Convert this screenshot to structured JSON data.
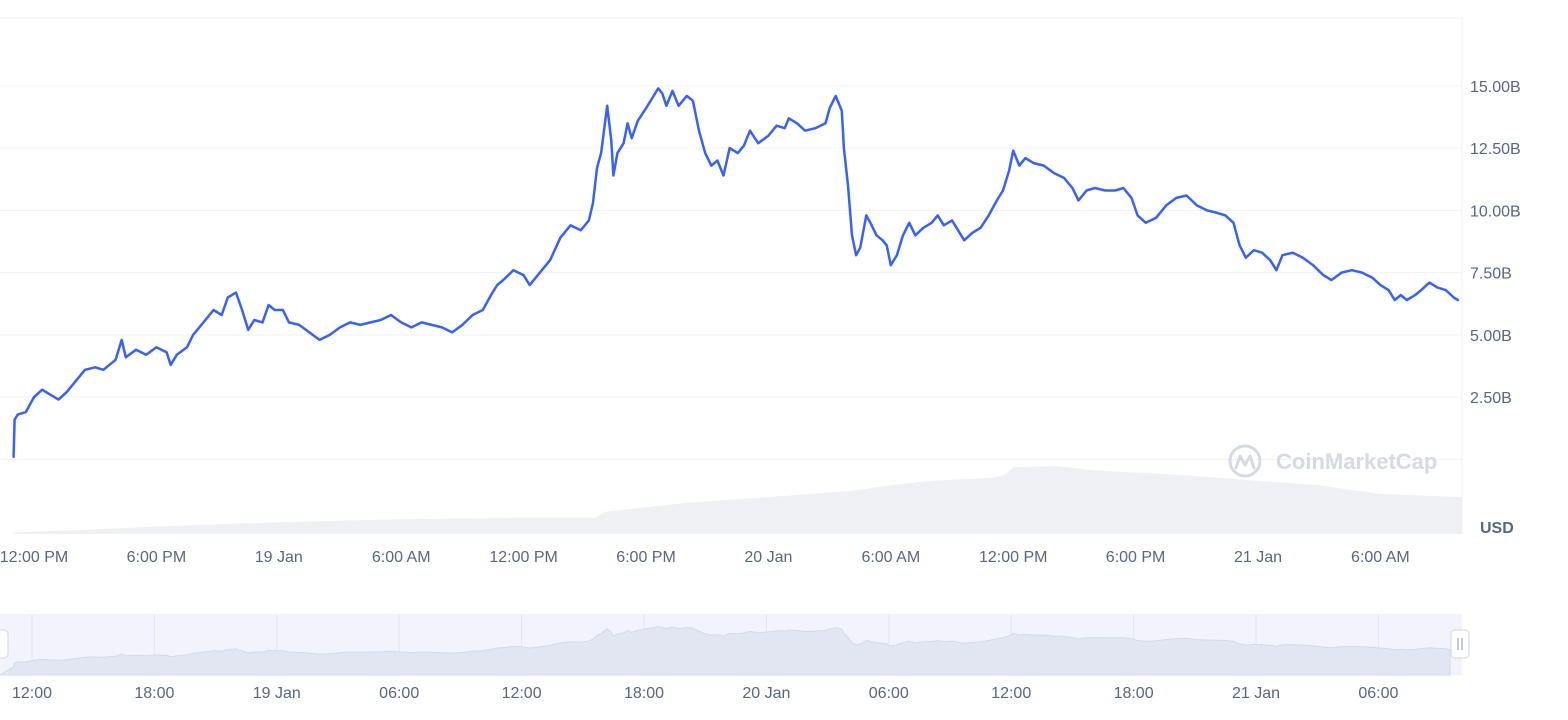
{
  "chart_data": {
    "type": "line",
    "unit": "USD",
    "y_ticks": [
      "2.50B",
      "5.00B",
      "7.50B",
      "10.00B",
      "12.50B",
      "15.00B"
    ],
    "y_tick_values": [
      2.5,
      5.0,
      7.5,
      10.0,
      12.5,
      15.0
    ],
    "ylim": [
      -0.5,
      17.5
    ],
    "grid": true,
    "x_ticks": [
      "12:00 PM",
      "6:00 PM",
      "19 Jan",
      "6:00 AM",
      "12:00 PM",
      "6:00 PM",
      "20 Jan",
      "6:00 AM",
      "12:00 PM",
      "6:00 PM",
      "21 Jan",
      "6:00 AM"
    ],
    "x_tick_hours": [
      12,
      18,
      24,
      30,
      36,
      42,
      48,
      54,
      60,
      66,
      72,
      78
    ],
    "xlim_hours": [
      11,
      82
    ],
    "series": [
      {
        "color": "#3861fb",
        "points": [
          [
            11.0,
            0.1
          ],
          [
            11.05,
            1.6
          ],
          [
            11.2,
            1.8
          ],
          [
            11.6,
            1.9
          ],
          [
            12.0,
            2.5
          ],
          [
            12.4,
            2.8
          ],
          [
            12.8,
            2.6
          ],
          [
            13.2,
            2.4
          ],
          [
            13.6,
            2.7
          ],
          [
            14.0,
            3.1
          ],
          [
            14.5,
            3.6
          ],
          [
            15.0,
            3.7
          ],
          [
            15.4,
            3.6
          ],
          [
            16.0,
            4.0
          ],
          [
            16.3,
            4.8
          ],
          [
            16.5,
            4.1
          ],
          [
            17.0,
            4.4
          ],
          [
            17.5,
            4.2
          ],
          [
            18.0,
            4.5
          ],
          [
            18.5,
            4.3
          ],
          [
            18.7,
            3.8
          ],
          [
            19.0,
            4.2
          ],
          [
            19.5,
            4.5
          ],
          [
            19.8,
            5.0
          ],
          [
            20.4,
            5.6
          ],
          [
            20.8,
            6.0
          ],
          [
            21.2,
            5.8
          ],
          [
            21.5,
            6.5
          ],
          [
            21.9,
            6.7
          ],
          [
            22.2,
            6.0
          ],
          [
            22.5,
            5.2
          ],
          [
            22.8,
            5.6
          ],
          [
            23.2,
            5.5
          ],
          [
            23.5,
            6.2
          ],
          [
            23.8,
            6.0
          ],
          [
            24.2,
            6.0
          ],
          [
            24.5,
            5.5
          ],
          [
            25.0,
            5.4
          ],
          [
            25.5,
            5.1
          ],
          [
            26.0,
            4.8
          ],
          [
            26.5,
            5.0
          ],
          [
            27.0,
            5.3
          ],
          [
            27.5,
            5.5
          ],
          [
            28.0,
            5.4
          ],
          [
            28.5,
            5.5
          ],
          [
            29.0,
            5.6
          ],
          [
            29.5,
            5.8
          ],
          [
            30.0,
            5.5
          ],
          [
            30.5,
            5.3
          ],
          [
            31.0,
            5.5
          ],
          [
            31.5,
            5.4
          ],
          [
            32.0,
            5.3
          ],
          [
            32.5,
            5.1
          ],
          [
            33.0,
            5.4
          ],
          [
            33.5,
            5.8
          ],
          [
            34.0,
            6.0
          ],
          [
            34.4,
            6.6
          ],
          [
            34.7,
            7.0
          ],
          [
            35.0,
            7.2
          ],
          [
            35.5,
            7.6
          ],
          [
            36.0,
            7.4
          ],
          [
            36.3,
            7.0
          ],
          [
            36.8,
            7.5
          ],
          [
            37.3,
            8.0
          ],
          [
            37.8,
            8.9
          ],
          [
            38.3,
            9.4
          ],
          [
            38.8,
            9.2
          ],
          [
            39.2,
            9.6
          ],
          [
            39.4,
            10.3
          ],
          [
            39.6,
            11.7
          ],
          [
            39.8,
            12.3
          ],
          [
            40.1,
            14.2
          ],
          [
            40.3,
            12.8
          ],
          [
            40.4,
            11.4
          ],
          [
            40.6,
            12.3
          ],
          [
            40.9,
            12.7
          ],
          [
            41.1,
            13.5
          ],
          [
            41.3,
            12.9
          ],
          [
            41.6,
            13.6
          ],
          [
            42.0,
            14.1
          ],
          [
            42.3,
            14.5
          ],
          [
            42.6,
            14.9
          ],
          [
            42.8,
            14.7
          ],
          [
            43.0,
            14.2
          ],
          [
            43.3,
            14.8
          ],
          [
            43.6,
            14.2
          ],
          [
            44.0,
            14.6
          ],
          [
            44.3,
            14.4
          ],
          [
            44.6,
            13.2
          ],
          [
            44.9,
            12.3
          ],
          [
            45.2,
            11.8
          ],
          [
            45.5,
            12.0
          ],
          [
            45.8,
            11.4
          ],
          [
            46.1,
            12.5
          ],
          [
            46.5,
            12.3
          ],
          [
            46.8,
            12.6
          ],
          [
            47.1,
            13.2
          ],
          [
            47.5,
            12.7
          ],
          [
            48.0,
            13.0
          ],
          [
            48.4,
            13.4
          ],
          [
            48.8,
            13.3
          ],
          [
            49.0,
            13.7
          ],
          [
            49.4,
            13.5
          ],
          [
            49.8,
            13.2
          ],
          [
            50.3,
            13.3
          ],
          [
            50.8,
            13.5
          ],
          [
            51.0,
            14.1
          ],
          [
            51.3,
            14.6
          ],
          [
            51.6,
            14.0
          ],
          [
            51.7,
            12.5
          ],
          [
            51.9,
            11.0
          ],
          [
            52.1,
            9.0
          ],
          [
            52.3,
            8.2
          ],
          [
            52.5,
            8.5
          ],
          [
            52.8,
            9.8
          ],
          [
            53.0,
            9.5
          ],
          [
            53.3,
            9.0
          ],
          [
            53.6,
            8.8
          ],
          [
            53.8,
            8.6
          ],
          [
            54.0,
            7.8
          ],
          [
            54.3,
            8.2
          ],
          [
            54.6,
            9.0
          ],
          [
            54.9,
            9.5
          ],
          [
            55.2,
            9.0
          ],
          [
            55.6,
            9.3
          ],
          [
            56.0,
            9.5
          ],
          [
            56.3,
            9.8
          ],
          [
            56.6,
            9.4
          ],
          [
            57.0,
            9.6
          ],
          [
            57.3,
            9.2
          ],
          [
            57.6,
            8.8
          ],
          [
            58.0,
            9.1
          ],
          [
            58.4,
            9.3
          ],
          [
            58.8,
            9.8
          ],
          [
            59.2,
            10.4
          ],
          [
            59.5,
            10.8
          ],
          [
            59.8,
            11.6
          ],
          [
            60.0,
            12.4
          ],
          [
            60.3,
            11.8
          ],
          [
            60.6,
            12.1
          ],
          [
            61.0,
            11.9
          ],
          [
            61.5,
            11.8
          ],
          [
            62.0,
            11.5
          ],
          [
            62.5,
            11.3
          ],
          [
            62.9,
            10.9
          ],
          [
            63.2,
            10.4
          ],
          [
            63.6,
            10.8
          ],
          [
            64.0,
            10.9
          ],
          [
            64.5,
            10.8
          ],
          [
            65.0,
            10.8
          ],
          [
            65.4,
            10.9
          ],
          [
            65.8,
            10.5
          ],
          [
            66.1,
            9.8
          ],
          [
            66.5,
            9.5
          ],
          [
            67.0,
            9.7
          ],
          [
            67.5,
            10.2
          ],
          [
            68.0,
            10.5
          ],
          [
            68.5,
            10.6
          ],
          [
            69.0,
            10.2
          ],
          [
            69.5,
            10.0
          ],
          [
            70.0,
            9.9
          ],
          [
            70.4,
            9.8
          ],
          [
            70.8,
            9.5
          ],
          [
            71.1,
            8.6
          ],
          [
            71.4,
            8.1
          ],
          [
            71.8,
            8.4
          ],
          [
            72.2,
            8.3
          ],
          [
            72.6,
            8.0
          ],
          [
            72.9,
            7.6
          ],
          [
            73.2,
            8.2
          ],
          [
            73.7,
            8.3
          ],
          [
            74.2,
            8.1
          ],
          [
            74.7,
            7.8
          ],
          [
            75.2,
            7.4
          ],
          [
            75.6,
            7.2
          ],
          [
            76.1,
            7.5
          ],
          [
            76.6,
            7.6
          ],
          [
            77.1,
            7.5
          ],
          [
            77.6,
            7.3
          ],
          [
            78.0,
            7.0
          ],
          [
            78.4,
            6.8
          ],
          [
            78.7,
            6.4
          ],
          [
            79.0,
            6.6
          ],
          [
            79.3,
            6.4
          ],
          [
            79.7,
            6.6
          ],
          [
            80.0,
            6.8
          ],
          [
            80.4,
            7.1
          ],
          [
            80.8,
            6.9
          ],
          [
            81.2,
            6.8
          ],
          [
            81.6,
            6.5
          ],
          [
            81.8,
            6.4
          ]
        ]
      }
    ],
    "volume": {
      "color": "#eff0f3",
      "points": [
        [
          11.0,
          0.02
        ],
        [
          14.0,
          0.05
        ],
        [
          18.0,
          0.1
        ],
        [
          24.0,
          0.16
        ],
        [
          30.0,
          0.2
        ],
        [
          36.0,
          0.22
        ],
        [
          39.5,
          0.22
        ],
        [
          40.0,
          0.3
        ],
        [
          44.0,
          0.42
        ],
        [
          48.0,
          0.5
        ],
        [
          52.0,
          0.58
        ],
        [
          54.0,
          0.66
        ],
        [
          56.0,
          0.72
        ],
        [
          59.0,
          0.76
        ],
        [
          59.6,
          0.8
        ],
        [
          60.0,
          0.9
        ],
        [
          62.0,
          0.92
        ],
        [
          64.0,
          0.86
        ],
        [
          68.0,
          0.8
        ],
        [
          72.0,
          0.72
        ],
        [
          75.0,
          0.66
        ],
        [
          78.0,
          0.54
        ],
        [
          80.0,
          0.52
        ],
        [
          82.0,
          0.5
        ]
      ]
    },
    "navigator_x_ticks": [
      "12:00",
      "18:00",
      "19 Jan",
      "06:00",
      "12:00",
      "18:00",
      "20 Jan",
      "06:00",
      "12:00",
      "18:00",
      "21 Jan",
      "06:00"
    ],
    "watermark": "CoinMarketCap"
  }
}
